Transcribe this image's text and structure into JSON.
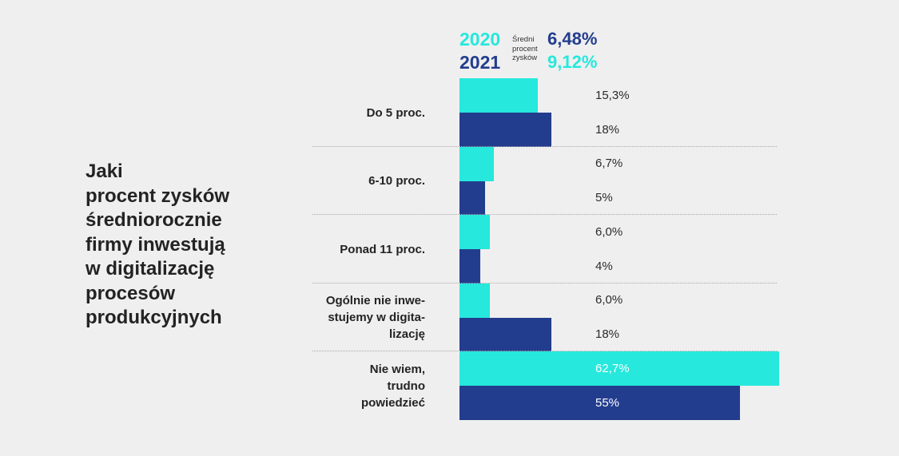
{
  "question": "Jaki\nprocent zysków\nśredniorocznie\nfirmy inwestują\nw digitalizację\nprocesów\nprodukcyjnych",
  "legend": {
    "year_2020": "2020",
    "year_2021": "2021",
    "avg_caption": "Średni procent zysków",
    "avg_2020": "6,48%",
    "avg_2021": "9,12%"
  },
  "colors": {
    "s2020": "#26e8dc",
    "s2021": "#233d8e",
    "background": "#efefef",
    "text": "#232323"
  },
  "chart_data": {
    "type": "bar",
    "orientation": "horizontal",
    "title": "Jaki procent zysków średniorocznie firmy inwestują w digitalizację procesów produkcyjnych",
    "categories": [
      "Do 5 proc.",
      "6-10 proc.",
      "Ponad 11 proc.",
      "Ogólnie nie inwe-\nstujemy w digita-\nlizację",
      "Nie wiem,\ntrudno\npowiedzieć"
    ],
    "series": [
      {
        "name": "2020",
        "values": [
          15.3,
          6.7,
          6.0,
          6.0,
          62.7
        ],
        "labels": [
          "15,3%",
          "6,7%",
          "6,0%",
          "6,0%",
          "62,7%"
        ]
      },
      {
        "name": "2021",
        "values": [
          18,
          5,
          4,
          18,
          55
        ],
        "labels": [
          "18%",
          "5%",
          "4%",
          "18%",
          "55%"
        ]
      }
    ],
    "xlim": [
      0,
      62.7
    ],
    "grid": false,
    "legend": "top"
  }
}
